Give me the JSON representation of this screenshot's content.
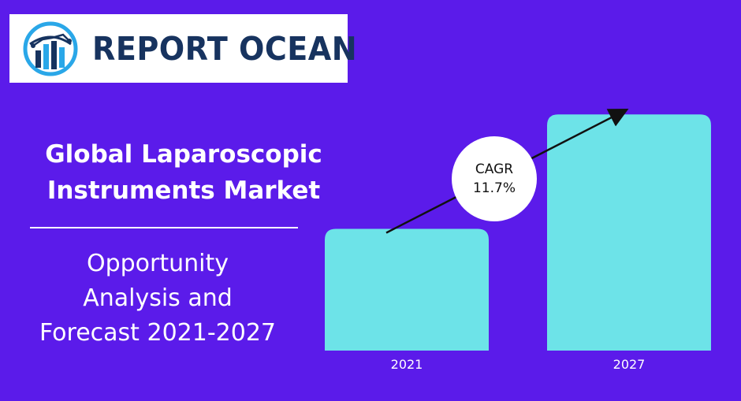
{
  "brand": {
    "name": "REPORT OCEAN",
    "logo_icon": "bar-chart-globe-icon",
    "colors": {
      "text": "#17335f",
      "accent": "#2aa7e8"
    }
  },
  "headline": {
    "title": "Global Laparoscopic\nInstruments Market",
    "subtitle": "Opportunity\nAnalysis and\nForecast 2021-2027"
  },
  "cagr": {
    "label": "CAGR",
    "value": "11.7%"
  },
  "colors": {
    "background": "#5b1bea",
    "bar": "#6de3e8",
    "arrow": "#111111"
  },
  "chart_data": {
    "type": "bar",
    "categories": [
      "2021",
      "2027"
    ],
    "values": [
      1.0,
      1.94
    ],
    "ylim": [
      0,
      2.0
    ],
    "title": "",
    "xlabel": "",
    "ylabel": "",
    "grid": false,
    "annotations": [
      {
        "text": "CAGR 11.7%"
      }
    ]
  }
}
